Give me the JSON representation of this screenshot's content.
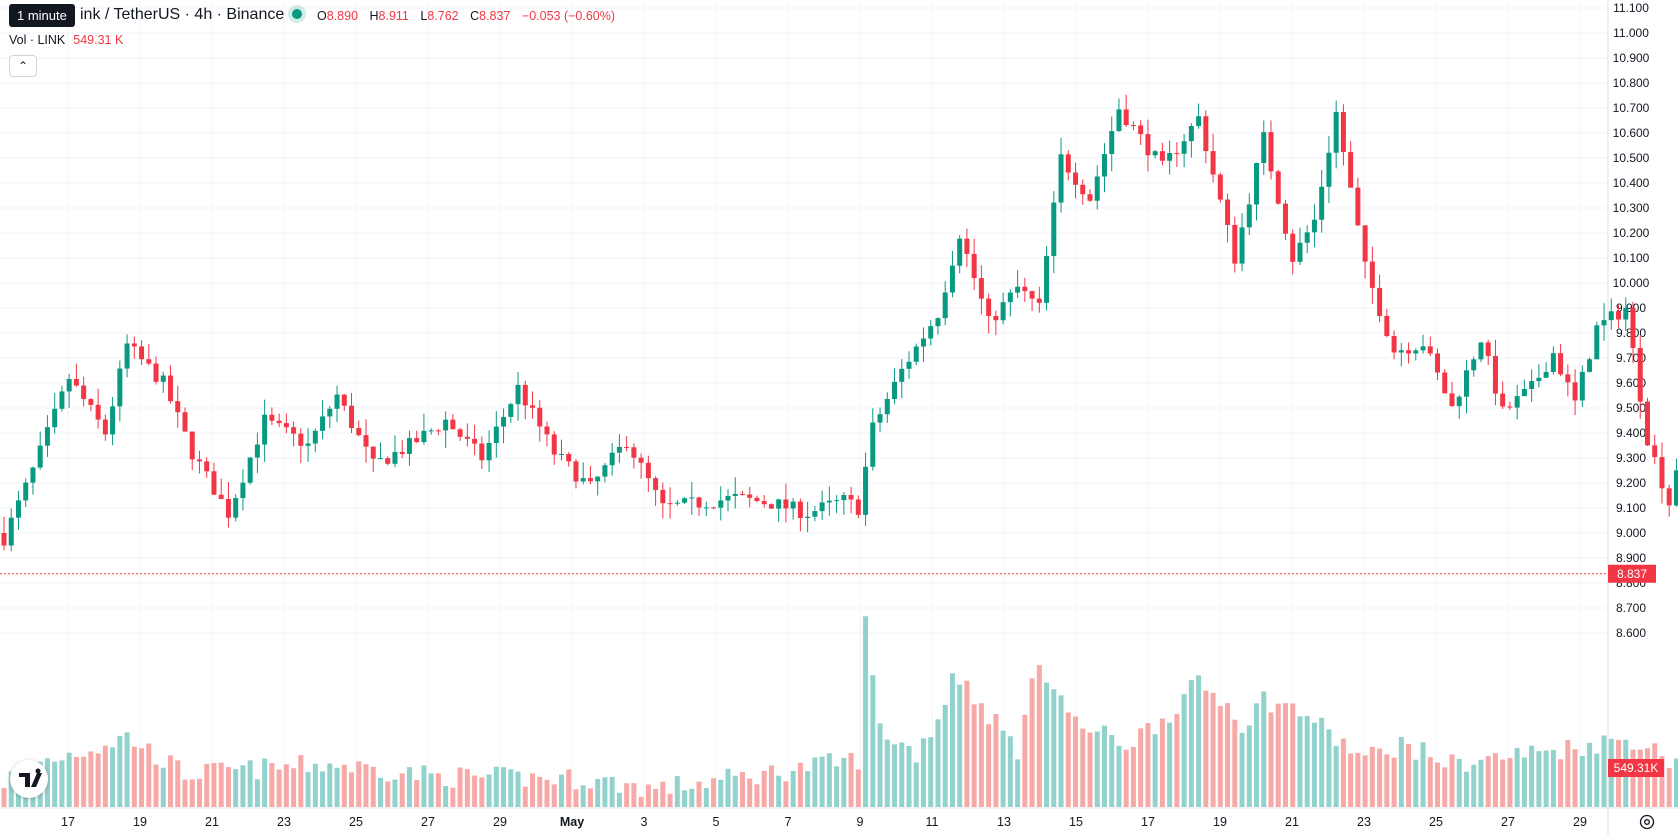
{
  "tooltip": "1 minute",
  "header": {
    "symbol": "ink / TetherUS · 4h · Binance",
    "ohlc": [
      {
        "label": "O",
        "value": "8.890"
      },
      {
        "label": "H",
        "value": "8.911"
      },
      {
        "label": "L",
        "value": "8.762"
      },
      {
        "label": "C",
        "value": "8.837"
      }
    ],
    "change": "−0.053 (−0.60%)"
  },
  "volume_legend": {
    "label": "Vol · LINK",
    "value": "549.31 K"
  },
  "price_badge": "8.837",
  "volume_badge": "549.31 K",
  "icons": {
    "collapse": "chevron-up-icon",
    "logo": "tradingview-logo-icon",
    "settings": "gear-icon"
  },
  "colors": {
    "up": "#089981",
    "down": "#f23645",
    "up_vol": "#92d2cc",
    "down_vol": "#f7a9a7",
    "grid": "#f0f3fa",
    "text": "#131722"
  },
  "chart_data": {
    "type": "candlestick",
    "interval": "4h",
    "yaxis_ticks": [
      "11.100",
      "11.000",
      "10.900",
      "10.800",
      "10.700",
      "10.600",
      "10.500",
      "10.400",
      "10.300",
      "10.200",
      "10.100",
      "10.000",
      "9.900",
      "9.800",
      "9.700",
      "9.600",
      "9.500",
      "9.400",
      "9.300",
      "9.200",
      "9.100",
      "9.000",
      "8.900",
      "8.800",
      "8.700",
      "8.600"
    ],
    "xaxis_ticks": [
      "17",
      "19",
      "21",
      "23",
      "25",
      "27",
      "29",
      "May",
      "3",
      "5",
      "7",
      "9",
      "11",
      "13",
      "15",
      "17",
      "19",
      "21",
      "23",
      "25",
      "27",
      "29"
    ],
    "ylim": [
      8.55,
      11.13
    ],
    "last_price": 8.837,
    "close_path": [
      [
        0,
        8.98
      ],
      [
        4,
        9.25
      ],
      [
        9,
        9.62
      ],
      [
        14,
        9.4
      ],
      [
        17,
        9.75
      ],
      [
        22,
        9.6
      ],
      [
        26,
        9.32
      ],
      [
        31,
        9.08
      ],
      [
        36,
        9.45
      ],
      [
        42,
        9.35
      ],
      [
        46,
        9.55
      ],
      [
        51,
        9.27
      ],
      [
        56,
        9.35
      ],
      [
        61,
        9.45
      ],
      [
        66,
        9.3
      ],
      [
        71,
        9.58
      ],
      [
        76,
        9.32
      ],
      [
        81,
        9.18
      ],
      [
        86,
        9.37
      ],
      [
        91,
        9.1
      ],
      [
        96,
        9.12
      ],
      [
        101,
        9.14
      ],
      [
        106,
        9.12
      ],
      [
        111,
        9.08
      ],
      [
        116,
        9.13
      ],
      [
        118,
        9.1
      ],
      [
        120,
        9.42
      ],
      [
        124,
        9.65
      ],
      [
        129,
        9.88
      ],
      [
        132,
        10.2
      ],
      [
        136,
        9.84
      ],
      [
        140,
        9.98
      ],
      [
        143,
        9.9
      ],
      [
        146,
        10.5
      ],
      [
        150,
        10.34
      ],
      [
        154,
        10.7
      ],
      [
        160,
        10.46
      ],
      [
        165,
        10.66
      ],
      [
        170,
        10.1
      ],
      [
        174,
        10.58
      ],
      [
        178,
        10.1
      ],
      [
        181,
        10.25
      ],
      [
        184,
        10.68
      ],
      [
        188,
        10.06
      ],
      [
        192,
        9.73
      ],
      [
        196,
        9.76
      ],
      [
        200,
        9.5
      ],
      [
        204,
        9.78
      ],
      [
        207,
        9.48
      ],
      [
        211,
        9.58
      ],
      [
        214,
        9.72
      ],
      [
        217,
        9.52
      ],
      [
        220,
        9.82
      ],
      [
        224,
        9.9
      ],
      [
        227,
        9.38
      ],
      [
        230,
        9.12
      ],
      [
        233,
        9.55
      ],
      [
        237,
        9.45
      ],
      [
        240,
        9.38
      ],
      [
        243,
        9.58
      ],
      [
        246,
        9.5
      ],
      [
        249,
        9.4
      ],
      [
        252,
        9.45
      ],
      [
        254,
        9.2
      ],
      [
        255,
        9.05
      ],
      [
        257,
        8.84
      ]
    ],
    "volume_path": [
      [
        0,
        45
      ],
      [
        4,
        80
      ],
      [
        14,
        120
      ],
      [
        17,
        135
      ],
      [
        25,
        60
      ],
      [
        45,
        80
      ],
      [
        60,
        55
      ],
      [
        80,
        50
      ],
      [
        90,
        30
      ],
      [
        105,
        60
      ],
      [
        118,
        90
      ],
      [
        119,
        360
      ],
      [
        121,
        150
      ],
      [
        126,
        100
      ],
      [
        130,
        200
      ],
      [
        131,
        270
      ],
      [
        136,
        180
      ],
      [
        140,
        110
      ],
      [
        143,
        290
      ],
      [
        148,
        160
      ],
      [
        155,
        120
      ],
      [
        160,
        170
      ],
      [
        165,
        240
      ],
      [
        170,
        190
      ],
      [
        171,
        155
      ],
      [
        174,
        210
      ],
      [
        180,
        180
      ],
      [
        183,
        140
      ],
      [
        188,
        90
      ],
      [
        193,
        120
      ],
      [
        200,
        80
      ],
      [
        210,
        100
      ],
      [
        222,
        125
      ],
      [
        225,
        130
      ],
      [
        230,
        90
      ],
      [
        240,
        70
      ],
      [
        250,
        85
      ],
      [
        256,
        145
      ],
      [
        257,
        85
      ]
    ]
  }
}
